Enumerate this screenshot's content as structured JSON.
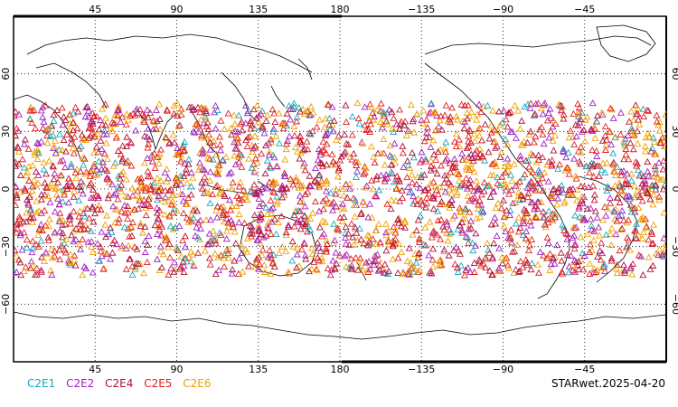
{
  "map": {
    "projection": "cylindrical equidistant, centered 180",
    "lon_range": [
      0,
      360
    ],
    "lat_range": [
      -90,
      90
    ],
    "grid": "dotted",
    "top_lon_ticks": [
      "45",
      "90",
      "135",
      "180",
      "−135",
      "−90",
      "−45"
    ],
    "bottom_lon_ticks": [
      "45",
      "90",
      "135",
      "180",
      "−135",
      "−90",
      "−45"
    ],
    "lat_ticks": [
      "60",
      "30",
      "0",
      "−30",
      "−60"
    ],
    "observation_band_deg": [
      -45,
      45
    ]
  },
  "legend": [
    {
      "label": "C2E1",
      "color": "#17a8c0"
    },
    {
      "label": "C2E2",
      "color": "#a020c0"
    },
    {
      "label": "C2E4",
      "color": "#b01030"
    },
    {
      "label": "C2E5",
      "color": "#e02020"
    },
    {
      "label": "C2E6",
      "color": "#f0a000"
    }
  ],
  "footer": {
    "id": "STARwet.2025-04-20"
  }
}
